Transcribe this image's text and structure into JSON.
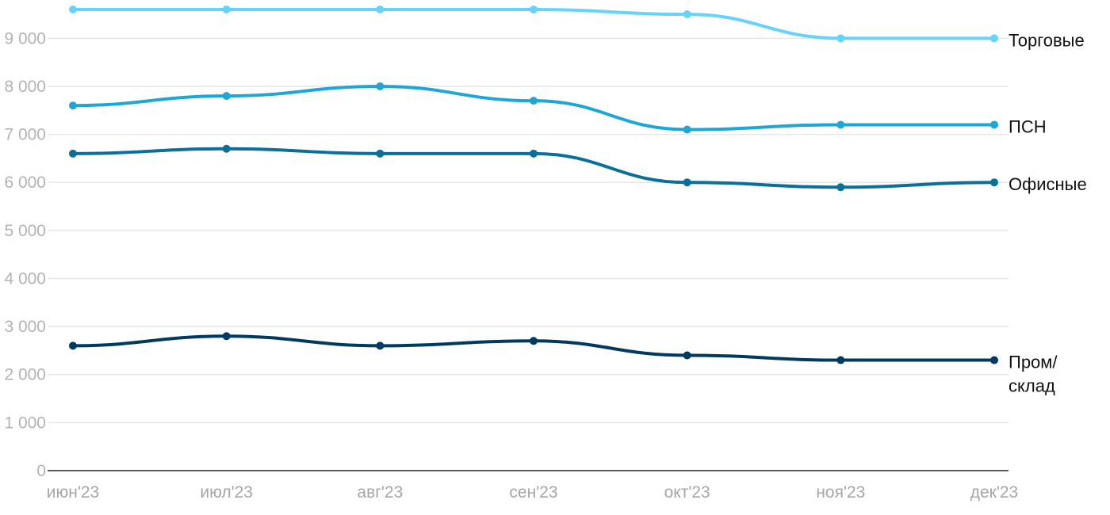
{
  "chart_data": {
    "type": "line",
    "x": [
      "июн'23",
      "июл'23",
      "авг'23",
      "сен'23",
      "окт'23",
      "ноя'23",
      "дек'23"
    ],
    "yticks": [
      "0",
      "1 000",
      "2 000",
      "3 000",
      "4 000",
      "5 000",
      "6 000",
      "7 000",
      "8 000",
      "9 000"
    ],
    "ylim": [
      0,
      9600
    ],
    "grid": true,
    "legend": "inline-right",
    "series": [
      {
        "name": "Торговые",
        "label_lines": [
          "Торговые"
        ],
        "color": "#66d3fa",
        "values": [
          9600,
          9600,
          9600,
          9600,
          9500,
          9000,
          9000
        ]
      },
      {
        "name": "ПСН",
        "label_lines": [
          "ПСН"
        ],
        "color": "#1ea7d4",
        "values": [
          7600,
          7800,
          8000,
          7700,
          7100,
          7200,
          7200
        ]
      },
      {
        "name": "Офисные",
        "label_lines": [
          "Офисные"
        ],
        "color": "#0a6f99",
        "values": [
          6600,
          6700,
          6600,
          6600,
          6000,
          5900,
          6000
        ]
      },
      {
        "name": "Пром/склад",
        "label_lines": [
          "Пром/",
          "склад"
        ],
        "color": "#003a5e",
        "values": [
          2600,
          2800,
          2600,
          2700,
          2400,
          2300,
          2300
        ]
      }
    ]
  }
}
